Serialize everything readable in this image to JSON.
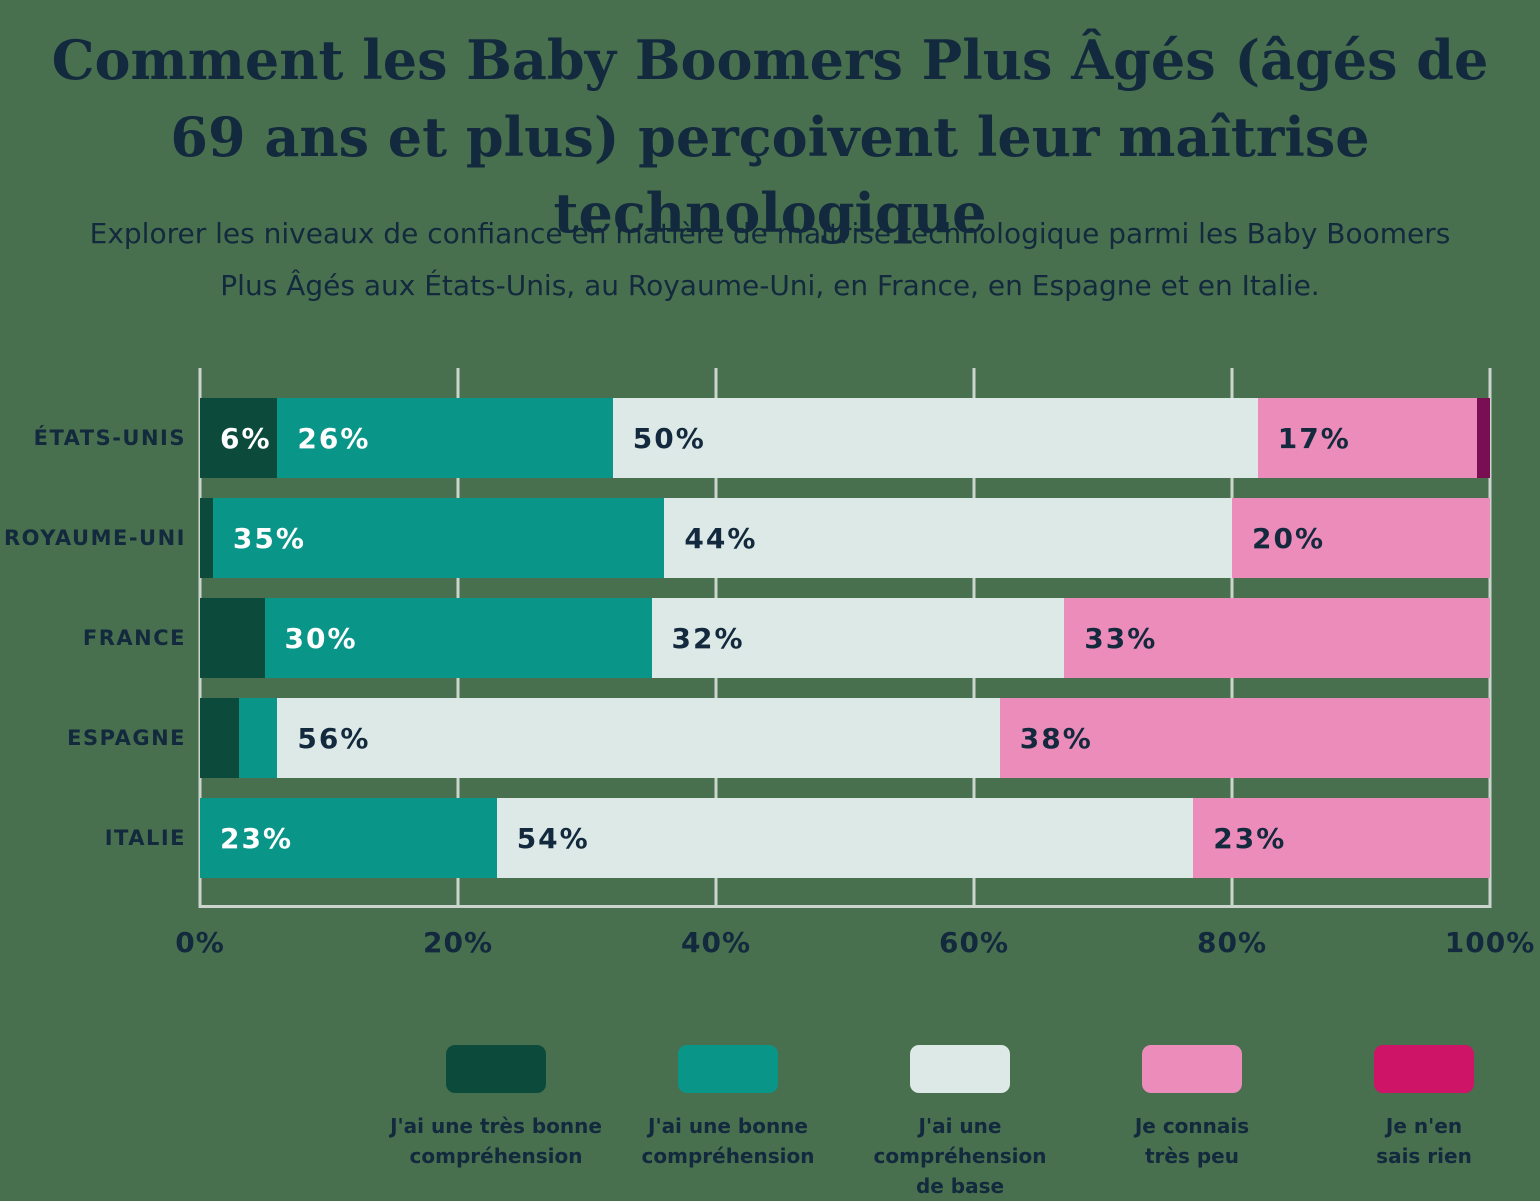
{
  "page": {
    "background_color": "#48704F",
    "text_color": "#13293D"
  },
  "header": {
    "title": "Comment les Baby Boomers Plus Âgés (âgés de 69 ans et plus) perçoivent leur maîtrise technologique",
    "subtitle": "Explorer les niveaux de confiance en matière de maîtrise technologique parmi les Baby Boomers Plus Âgés aux États-Unis, au Royaume-Uni, en France, en Espagne et en Italie."
  },
  "chart_data": {
    "type": "bar",
    "orientation": "horizontal",
    "stacked": true,
    "unit": "%",
    "categories": [
      "ÉTATS-UNIS",
      "ROYAUME-UNI",
      "FRANCE",
      "ESPAGNE",
      "ITALIE"
    ],
    "series": [
      {
        "name": "J'ai une très bonne compréhension",
        "color": "#0C4B3B",
        "label_color": "#FFFFFF",
        "values": [
          6,
          1,
          5,
          3,
          0
        ]
      },
      {
        "name": "J'ai une bonne compréhension",
        "color": "#0A9589",
        "label_color": "#FFFFFF",
        "values": [
          26,
          35,
          30,
          3,
          23
        ]
      },
      {
        "name": "J'ai une compréhension de base",
        "color": "#DDE9E6",
        "label_color": "#13293D",
        "values": [
          50,
          44,
          32,
          56,
          54
        ]
      },
      {
        "name": "Je connais très peu",
        "color": "#EC8CBA",
        "label_color": "#13293D",
        "values": [
          17,
          20,
          33,
          38,
          23
        ]
      },
      {
        "name": "Je n'en sais rien",
        "color": "#7A0E52",
        "label_color": "#FFFFFF",
        "values": [
          1,
          0,
          0,
          0,
          0
        ]
      }
    ],
    "x_ticks": [
      "0%",
      "20%",
      "40%",
      "60%",
      "80%",
      "100%"
    ],
    "xlim": [
      0,
      100
    ],
    "grid": "vertical",
    "gridline_color": "#CBD4CD",
    "legend_position": "bottom",
    "data_label_min_value": 6
  },
  "legend": {
    "items": [
      {
        "label": "J'ai une très bonne\ncompréhension",
        "swatch_color": "#0C4B3B"
      },
      {
        "label": "J'ai une bonne\ncompréhension",
        "swatch_color": "#0A9589"
      },
      {
        "label": "J'ai une compréhension\nde base",
        "swatch_color": "#DDE9E6"
      },
      {
        "label": "Je connais\ntrès peu",
        "swatch_color": "#EC8CBA"
      },
      {
        "label": "Je n'en\nsais rien",
        "swatch_color": "#CE1467"
      }
    ]
  }
}
